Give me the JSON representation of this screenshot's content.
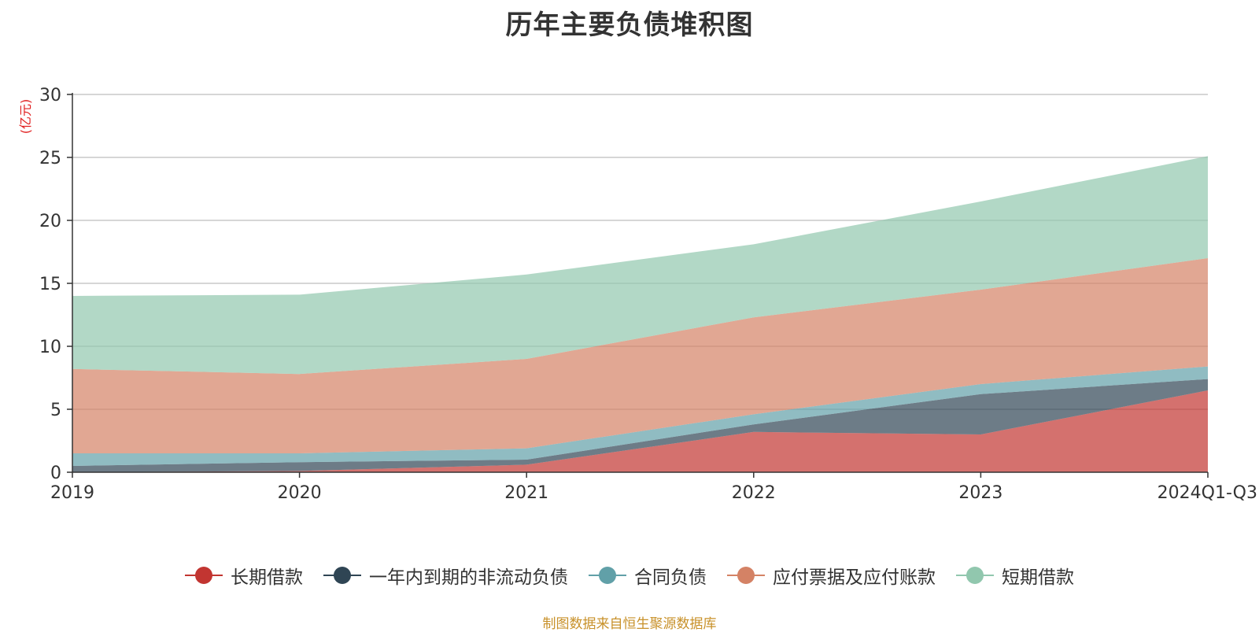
{
  "chart_data": {
    "type": "area",
    "stacked": true,
    "title": "历年主要负债堆积图",
    "ylabel": "(亿元)",
    "ylim": [
      0,
      30
    ],
    "yticks": [
      0,
      5,
      10,
      15,
      20,
      25,
      30
    ],
    "categories": [
      "2019",
      "2020",
      "2021",
      "2022",
      "2023",
      "2024Q1-Q3"
    ],
    "grid": true,
    "legend_position": "bottom",
    "series": [
      {
        "name": "长期借款",
        "color": "#c23531",
        "values": [
          0.0,
          0.1,
          0.6,
          3.2,
          3.0,
          6.5
        ]
      },
      {
        "name": "一年内到期的非流动负债",
        "color": "#2f4554",
        "values": [
          0.5,
          0.7,
          0.4,
          0.6,
          3.2,
          0.9
        ]
      },
      {
        "name": "合同负债",
        "color": "#61a0a8",
        "values": [
          1.0,
          0.7,
          0.9,
          0.8,
          0.8,
          1.0
        ]
      },
      {
        "name": "应付票据及应付账款",
        "color": "#d48265",
        "values": [
          6.7,
          6.3,
          7.1,
          7.7,
          7.5,
          8.6
        ]
      },
      {
        "name": "短期借款",
        "color": "#91c7ae",
        "values": [
          5.8,
          6.3,
          6.7,
          5.8,
          7.0,
          8.1
        ]
      }
    ],
    "source": "制图数据来自恒生聚源数据库"
  }
}
